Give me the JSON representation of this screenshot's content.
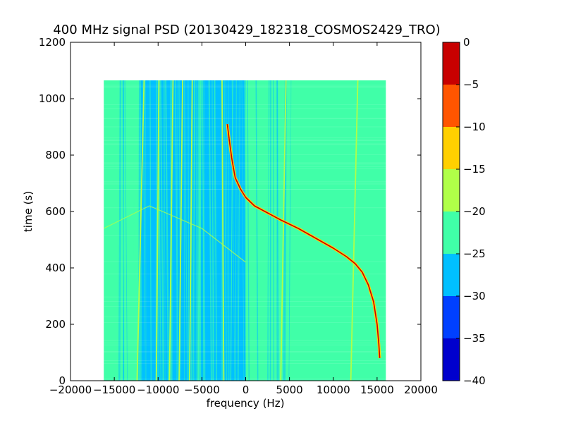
{
  "chart_data": {
    "type": "heatmap",
    "title": "400 MHz signal PSD (20130429_182318_COSMOS2429_TRO)",
    "xlabel": "frequency (Hz)",
    "ylabel": "time (s)",
    "xlim": [
      -20000,
      20000
    ],
    "ylim": [
      0,
      1200
    ],
    "xticks": [
      -20000,
      -15000,
      -10000,
      -5000,
      0,
      5000,
      10000,
      15000,
      20000
    ],
    "xtick_labels": [
      "−20000",
      "−15000",
      "−10000",
      "−5000",
      "0",
      "5000",
      "10000",
      "15000",
      "20000"
    ],
    "yticks": [
      0,
      200,
      400,
      600,
      800,
      1000,
      1200
    ],
    "ytick_labels": [
      "0",
      "200",
      "400",
      "600",
      "800",
      "1000",
      "1200"
    ],
    "data_extent": {
      "x": [
        -16200,
        16000
      ],
      "y": [
        0,
        1065
      ]
    },
    "grid": false,
    "colorbar": {
      "range": [
        -40,
        0
      ],
      "ticks": [
        0,
        -5,
        -10,
        -15,
        -20,
        -25,
        -30,
        -35,
        -40
      ],
      "tick_labels": [
        "0",
        "−5",
        "−10",
        "−15",
        "−20",
        "−25",
        "−30",
        "−35",
        "−40"
      ],
      "levels": [
        {
          "from": -40,
          "to": -35,
          "color": "#0000cd"
        },
        {
          "from": -35,
          "to": -30,
          "color": "#0040ff"
        },
        {
          "from": -30,
          "to": -25,
          "color": "#00c0ff"
        },
        {
          "from": -25,
          "to": -20,
          "color": "#40ffa8"
        },
        {
          "from": -20,
          "to": -15,
          "color": "#b0ff48"
        },
        {
          "from": -15,
          "to": -10,
          "color": "#ffd000"
        },
        {
          "from": -10,
          "to": -5,
          "color": "#ff5500"
        },
        {
          "from": -5,
          "to": 0,
          "color": "#c80000"
        }
      ]
    },
    "background_level_color": "#40ffa8",
    "noise_band": {
      "x": [
        -12000,
        0
      ],
      "color": "#00c0ff"
    },
    "vertical_lines": [
      {
        "x": [
          -12400,
          -11600
        ],
        "color": "#b0ff48"
      },
      {
        "x": [
          -10200,
          -9900
        ],
        "color": "#b0ff48"
      },
      {
        "x": [
          -8700,
          -8300
        ],
        "color": "#b0ff48"
      },
      {
        "x": [
          -7600,
          -7200
        ],
        "color": "#b0ff48"
      },
      {
        "x": [
          -6400,
          -6100
        ],
        "color": "#b0ff48"
      },
      {
        "x": [
          -2500,
          -2700
        ],
        "color": "#b0ff48"
      },
      {
        "x": [
          4000,
          4600
        ],
        "color": "#b0ff48"
      },
      {
        "x": [
          12000,
          12800
        ],
        "color": "#b0ff48"
      }
    ],
    "faint_diagonal": {
      "points": [
        [
          -16200,
          540
        ],
        [
          -11000,
          620
        ],
        [
          -5000,
          540
        ],
        [
          0,
          420
        ]
      ],
      "color": "#b0ff48"
    },
    "doppler_curve": {
      "color": "#c80000",
      "halo_color": "#ffd000",
      "points": [
        [
          -2100,
          910
        ],
        [
          -1900,
          860
        ],
        [
          -1600,
          790
        ],
        [
          -1200,
          720
        ],
        [
          -600,
          680
        ],
        [
          0,
          650
        ],
        [
          1000,
          620
        ],
        [
          2500,
          595
        ],
        [
          4000,
          570
        ],
        [
          6000,
          540
        ],
        [
          8000,
          505
        ],
        [
          10000,
          470
        ],
        [
          11500,
          440
        ],
        [
          12500,
          415
        ],
        [
          13300,
          385
        ],
        [
          14000,
          340
        ],
        [
          14600,
          280
        ],
        [
          15000,
          200
        ],
        [
          15200,
          130
        ],
        [
          15300,
          80
        ]
      ]
    }
  }
}
